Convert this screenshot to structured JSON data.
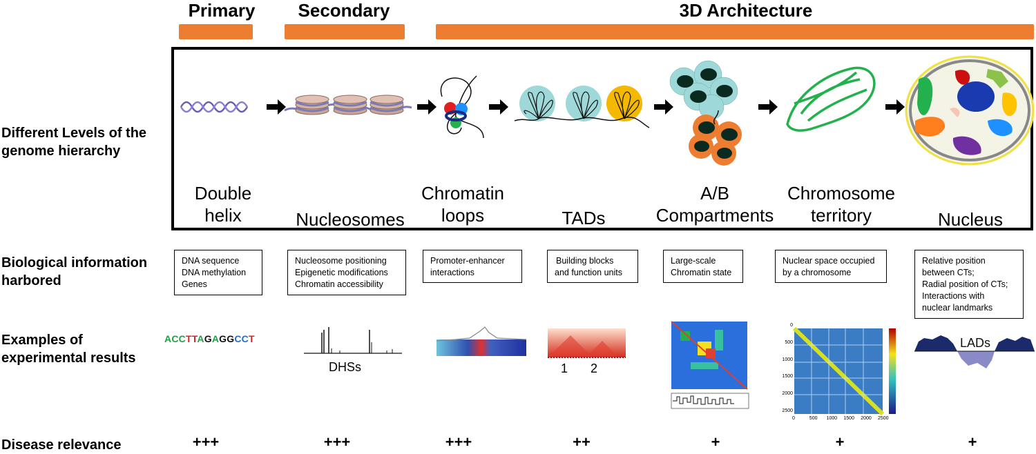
{
  "categories": [
    {
      "label": "Primary",
      "color": "#ED7D31"
    },
    {
      "label": "Secondary",
      "color": "#ED7D31"
    },
    {
      "label": "3D Architecture",
      "color": "#ED7D31"
    }
  ],
  "rows": {
    "levels": "Different Levels of the genome hierarchy",
    "levels_line1": "Different Levels of the",
    "levels_line2": "genome hierarchy",
    "info_line1": "Biological information",
    "info_line2": "harbored",
    "examples_line1": "Examples of",
    "examples_line2": "experimental results",
    "disease": "Disease relevance"
  },
  "levels": [
    {
      "line1": "Double",
      "line2": "helix"
    },
    {
      "line1": "",
      "line2": "Nucleosomes"
    },
    {
      "line1": "Chromatin",
      "line2": "loops"
    },
    {
      "line1": "",
      "line2": "TADs"
    },
    {
      "line1": "A/B",
      "line2": "Compartments"
    },
    {
      "line1": "Chromosome",
      "line2": "territory"
    },
    {
      "line1": "",
      "line2": "Nucleus"
    }
  ],
  "info": [
    [
      "DNA sequence",
      "DNA methylation",
      "Genes"
    ],
    [
      "Nucleosome positioning",
      "Epigenetic modifications",
      "Chromatin accessibility"
    ],
    [
      "Promoter-enhancer",
      "interactions"
    ],
    [
      "Building blocks",
      "and function units"
    ],
    [
      "Large-scale",
      "Chromatin state"
    ],
    [
      "Nuclear space occupied",
      "by a chromosome"
    ],
    [
      "Relative position",
      "between CTs;",
      "Radial position of CTs;",
      "Interactions with",
      "nuclear landmarks"
    ]
  ],
  "examples": {
    "dna_letters": [
      {
        "ch": "A",
        "color": "#22a045"
      },
      {
        "ch": "C",
        "color": "#22a045"
      },
      {
        "ch": "C",
        "color": "#22a045"
      },
      {
        "ch": "T",
        "color": "#e02020"
      },
      {
        "ch": "T",
        "color": "#e02020"
      },
      {
        "ch": "A",
        "color": "#22a045"
      },
      {
        "ch": "G",
        "color": "#111111"
      },
      {
        "ch": "A",
        "color": "#22a045"
      },
      {
        "ch": "G",
        "color": "#111111"
      },
      {
        "ch": "G",
        "color": "#111111"
      },
      {
        "ch": "C",
        "color": "#1e6fd0"
      },
      {
        "ch": "C",
        "color": "#1e6fd0"
      },
      {
        "ch": "T",
        "color": "#e02020"
      }
    ],
    "dhs_label": "DHSs",
    "tad_label_1": "1",
    "tad_label_2": "2",
    "lads_label": "LADs",
    "hic_ticks_y": [
      "0",
      "500",
      "1000",
      "1500",
      "2000",
      "2500"
    ],
    "hic_ticks_x": [
      "0",
      "500",
      "1000",
      "1500",
      "2000",
      "2500"
    ]
  },
  "disease": [
    "+++",
    "+++",
    "+++",
    "++",
    "+",
    "+",
    "+"
  ],
  "colors": {
    "accent": "#ED7D31",
    "green": "#22b14c",
    "teal": "#9fd8d8",
    "yellow": "#f5b800"
  }
}
